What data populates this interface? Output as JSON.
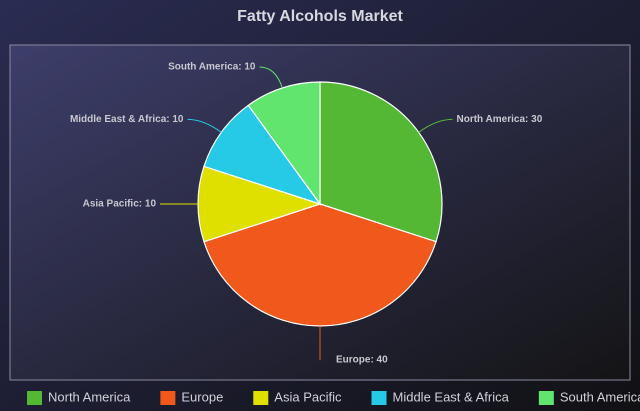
{
  "chart_data": {
    "type": "pie",
    "title": "Fatty Alcohols Market",
    "categories": [
      "North America",
      "Europe",
      "Asia Pacific",
      "Middle East & Africa",
      "South America"
    ],
    "values": [
      30,
      40,
      10,
      10,
      10
    ],
    "value_labels": [
      "North America: 30",
      "Europe: 40",
      "Asia Pacific: 10",
      "Middle East & Africa: 10",
      "South America: 10"
    ],
    "colors": [
      "#55b834",
      "#f0581c",
      "#dfe000",
      "#26c9e6",
      "#62e56e"
    ],
    "legend": "bottom"
  }
}
